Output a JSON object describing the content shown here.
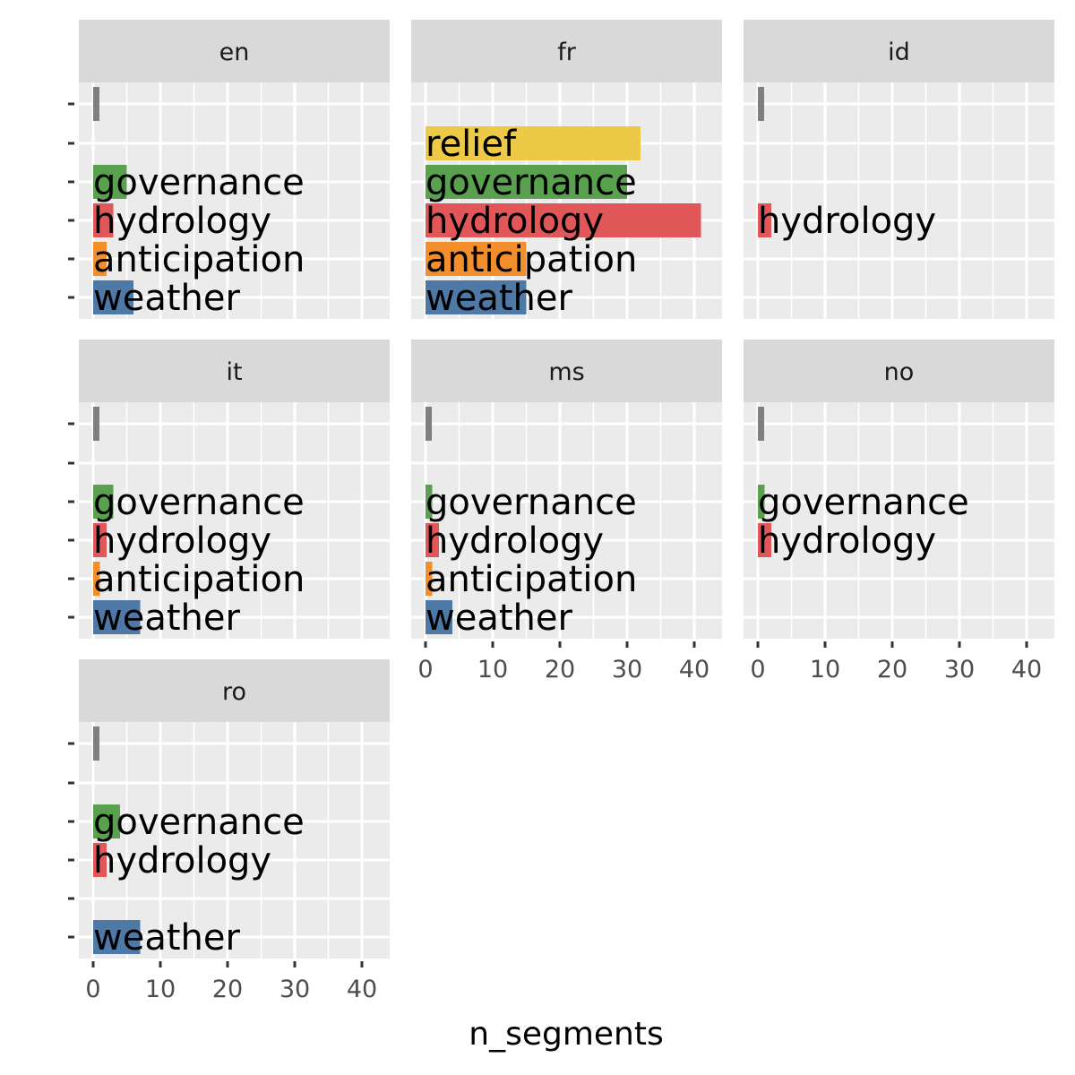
{
  "chart_data": {
    "type": "bar",
    "orientation": "horizontal",
    "facet_layout": "wrap-3-columns",
    "grid": true,
    "legend": "none",
    "xlabel": "n_segments",
    "ylabel": "",
    "xlim": [
      0,
      42
    ],
    "x_ticks": [
      "0",
      "10",
      "20",
      "30",
      "40"
    ],
    "categories": [
      "weather",
      "anticipation",
      "hydrology",
      "governance",
      "relief",
      "(unlabeled)"
    ],
    "category_colors": {
      "weather": "#4e79a7",
      "anticipation": "#f28e2b",
      "hydrology": "#e15759",
      "governance": "#59a14f",
      "relief": "#edc948",
      "(unlabeled)": "#7f7f7f"
    },
    "facets": [
      {
        "strip": "en",
        "values": {
          "weather": 6,
          "anticipation": 2,
          "hydrology": 3,
          "governance": 5,
          "relief": null,
          "(unlabeled)": 1
        }
      },
      {
        "strip": "fr",
        "values": {
          "weather": 15,
          "anticipation": 15,
          "hydrology": 41,
          "governance": 30,
          "relief": 32,
          "(unlabeled)": null
        }
      },
      {
        "strip": "id",
        "values": {
          "weather": null,
          "anticipation": null,
          "hydrology": 2,
          "governance": null,
          "relief": null,
          "(unlabeled)": 1
        }
      },
      {
        "strip": "it",
        "values": {
          "weather": 7,
          "anticipation": 1,
          "hydrology": 2,
          "governance": 3,
          "relief": null,
          "(unlabeled)": 1
        }
      },
      {
        "strip": "ms",
        "values": {
          "weather": 4,
          "anticipation": 1,
          "hydrology": 2,
          "governance": 1,
          "relief": null,
          "(unlabeled)": 1
        }
      },
      {
        "strip": "no",
        "values": {
          "weather": null,
          "anticipation": null,
          "hydrology": 2,
          "governance": 1,
          "relief": null,
          "(unlabeled)": 1
        }
      },
      {
        "strip": "ro",
        "values": {
          "weather": 7,
          "anticipation": null,
          "hydrology": 2,
          "governance": 4,
          "relief": null,
          "(unlabeled)": 1
        }
      }
    ]
  },
  "colors": {
    "panel_bg": "#ebebeb",
    "strip_bg": "#d9d9d9",
    "grid": "#ffffff",
    "tick": "#333333"
  }
}
